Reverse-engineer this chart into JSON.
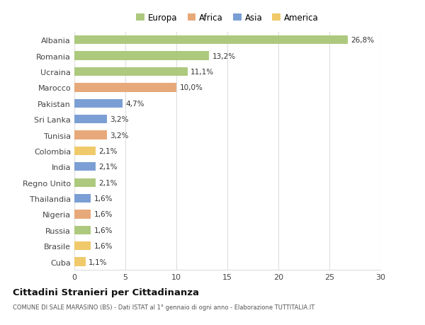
{
  "countries": [
    "Albania",
    "Romania",
    "Ucraina",
    "Marocco",
    "Pakistan",
    "Sri Lanka",
    "Tunisia",
    "Colombia",
    "India",
    "Regno Unito",
    "Thailandia",
    "Nigeria",
    "Russia",
    "Brasile",
    "Cuba"
  ],
  "values": [
    26.8,
    13.2,
    11.1,
    10.0,
    4.7,
    3.2,
    3.2,
    2.1,
    2.1,
    2.1,
    1.6,
    1.6,
    1.6,
    1.6,
    1.1
  ],
  "labels": [
    "26,8%",
    "13,2%",
    "11,1%",
    "10,0%",
    "4,7%",
    "3,2%",
    "3,2%",
    "2,1%",
    "2,1%",
    "2,1%",
    "1,6%",
    "1,6%",
    "1,6%",
    "1,6%",
    "1,1%"
  ],
  "continents": [
    "Europa",
    "Europa",
    "Europa",
    "Africa",
    "Asia",
    "Asia",
    "Africa",
    "America",
    "Asia",
    "Europa",
    "Asia",
    "Africa",
    "Europa",
    "America",
    "America"
  ],
  "colors": {
    "Europa": "#adc97e",
    "Africa": "#e8a97a",
    "Asia": "#7b9fd4",
    "America": "#f0c96a"
  },
  "legend_labels": [
    "Europa",
    "Africa",
    "Asia",
    "America"
  ],
  "legend_colors": [
    "#adc97e",
    "#e8a97a",
    "#7b9fd4",
    "#f0c96a"
  ],
  "xlim": [
    0,
    30
  ],
  "xticks": [
    0,
    5,
    10,
    15,
    20,
    25,
    30
  ],
  "title": "Cittadini Stranieri per Cittadinanza",
  "subtitle": "COMUNE DI SALE MARASINO (BS) - Dati ISTAT al 1° gennaio di ogni anno - Elaborazione TUTTITALIA.IT",
  "bg_color": "#ffffff",
  "grid_color": "#dddddd",
  "bar_height": 0.55
}
